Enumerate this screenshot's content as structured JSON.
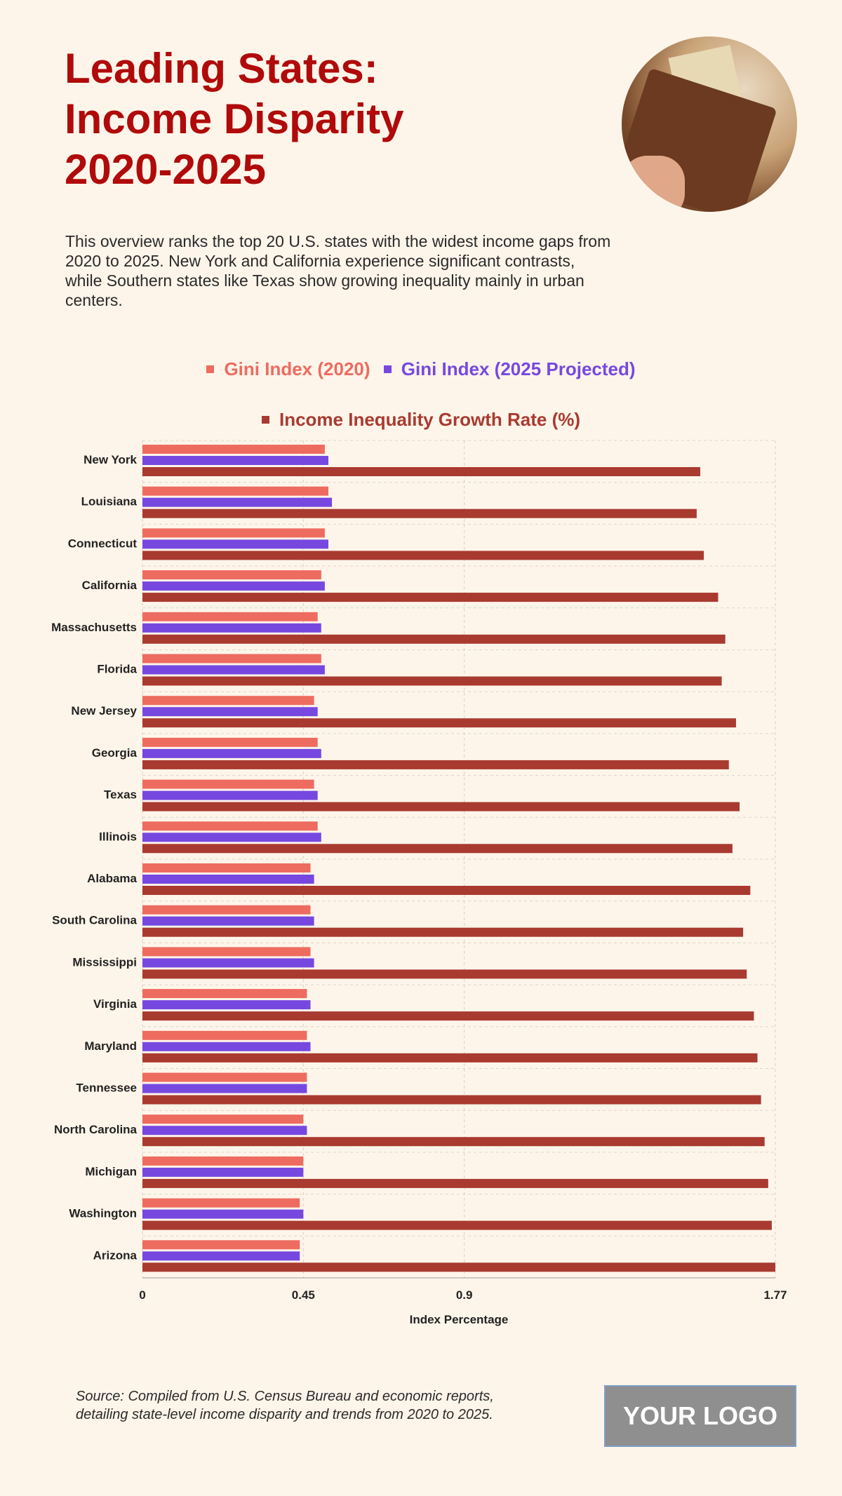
{
  "header": {
    "title": "Leading States: Income Disparity 2020-2025",
    "description": "This overview ranks the top 20 U.S. states with the widest income gaps from 2020 to 2025. New York and California experience significant contrasts, while Southern states like Texas show growing inequality mainly in urban centers."
  },
  "footer": {
    "source": "Source: Compiled from U.S. Census Bureau and economic reports, detailing state-level income disparity and trends from 2020 to 2025.",
    "logo": "YOUR LOGO"
  },
  "chart_data": {
    "type": "bar",
    "orientation": "horizontal",
    "xlabel": "Index Percentage",
    "ylabel": "",
    "xlim": [
      0,
      1.77
    ],
    "xticks": [
      "0",
      "0.45",
      "0.9",
      "1.77"
    ],
    "grid": true,
    "legend_position": "top",
    "categories": [
      "New York",
      "Louisiana",
      "Connecticut",
      "California",
      "Massachusetts",
      "Florida",
      "New Jersey",
      "Georgia",
      "Texas",
      "Illinois",
      "Alabama",
      "South Carolina",
      "Mississippi",
      "Virginia",
      "Maryland",
      "Tennessee",
      "North Carolina",
      "Michigan",
      "Washington",
      "Arizona"
    ],
    "series": [
      {
        "name": "Gini Index (2020)",
        "color": "#EE6B60",
        "values": [
          0.51,
          0.52,
          0.51,
          0.5,
          0.49,
          0.5,
          0.48,
          0.49,
          0.48,
          0.49,
          0.47,
          0.47,
          0.47,
          0.46,
          0.46,
          0.46,
          0.45,
          0.45,
          0.44,
          0.44
        ]
      },
      {
        "name": "Gini Index (2025 Projected)",
        "color": "#7748E0",
        "values": [
          0.52,
          0.53,
          0.52,
          0.51,
          0.5,
          0.51,
          0.49,
          0.5,
          0.49,
          0.5,
          0.48,
          0.48,
          0.48,
          0.47,
          0.47,
          0.46,
          0.46,
          0.45,
          0.45,
          0.44
        ]
      },
      {
        "name": "Income Inequality Growth Rate (%)",
        "color": "#A93A30",
        "values": [
          1.56,
          1.55,
          1.57,
          1.61,
          1.63,
          1.62,
          1.66,
          1.64,
          1.67,
          1.65,
          1.7,
          1.68,
          1.69,
          1.71,
          1.72,
          1.73,
          1.74,
          1.75,
          1.76,
          1.77
        ]
      }
    ]
  }
}
